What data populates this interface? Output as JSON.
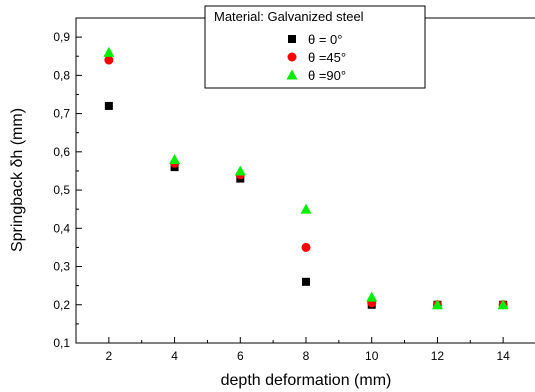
{
  "chart_data": {
    "type": "scatter",
    "title": "",
    "xlabel": "depth deformation (mm)",
    "ylabel": "Springback δh (mm)",
    "xlim": [
      1,
      15
    ],
    "ylim": [
      0.1,
      0.95
    ],
    "x_ticks": [
      2,
      4,
      6,
      8,
      10,
      12,
      14
    ],
    "x_tick_labels": [
      "2",
      "4",
      "6",
      "8",
      "10",
      "12",
      "14"
    ],
    "y_ticks": [
      0.1,
      0.2,
      0.3,
      0.4,
      0.5,
      0.6,
      0.7,
      0.8,
      0.9
    ],
    "y_tick_labels": [
      "0,1",
      "0,2",
      "0,3",
      "0,4",
      "0,5",
      "0,6",
      "0,7",
      "0,8",
      "0,9"
    ],
    "grid": false,
    "legend": {
      "placement": "top-right",
      "title": "Material: Galvanized steel"
    },
    "x": [
      2,
      4,
      6,
      8,
      10,
      12,
      14
    ],
    "series": [
      {
        "name": "θ = 0°",
        "marker": "square",
        "color": "#000000",
        "values": [
          0.72,
          0.56,
          0.53,
          0.26,
          0.2,
          0.2,
          0.2
        ]
      },
      {
        "name": "θ =45°",
        "marker": "circle",
        "color": "#ff0000",
        "values": [
          0.84,
          0.57,
          0.54,
          0.35,
          0.205,
          0.2,
          0.2
        ]
      },
      {
        "name": "θ =90°",
        "marker": "triangle",
        "color": "#00ee00",
        "values": [
          0.86,
          0.58,
          0.55,
          0.45,
          0.22,
          0.2,
          0.2
        ]
      }
    ]
  }
}
